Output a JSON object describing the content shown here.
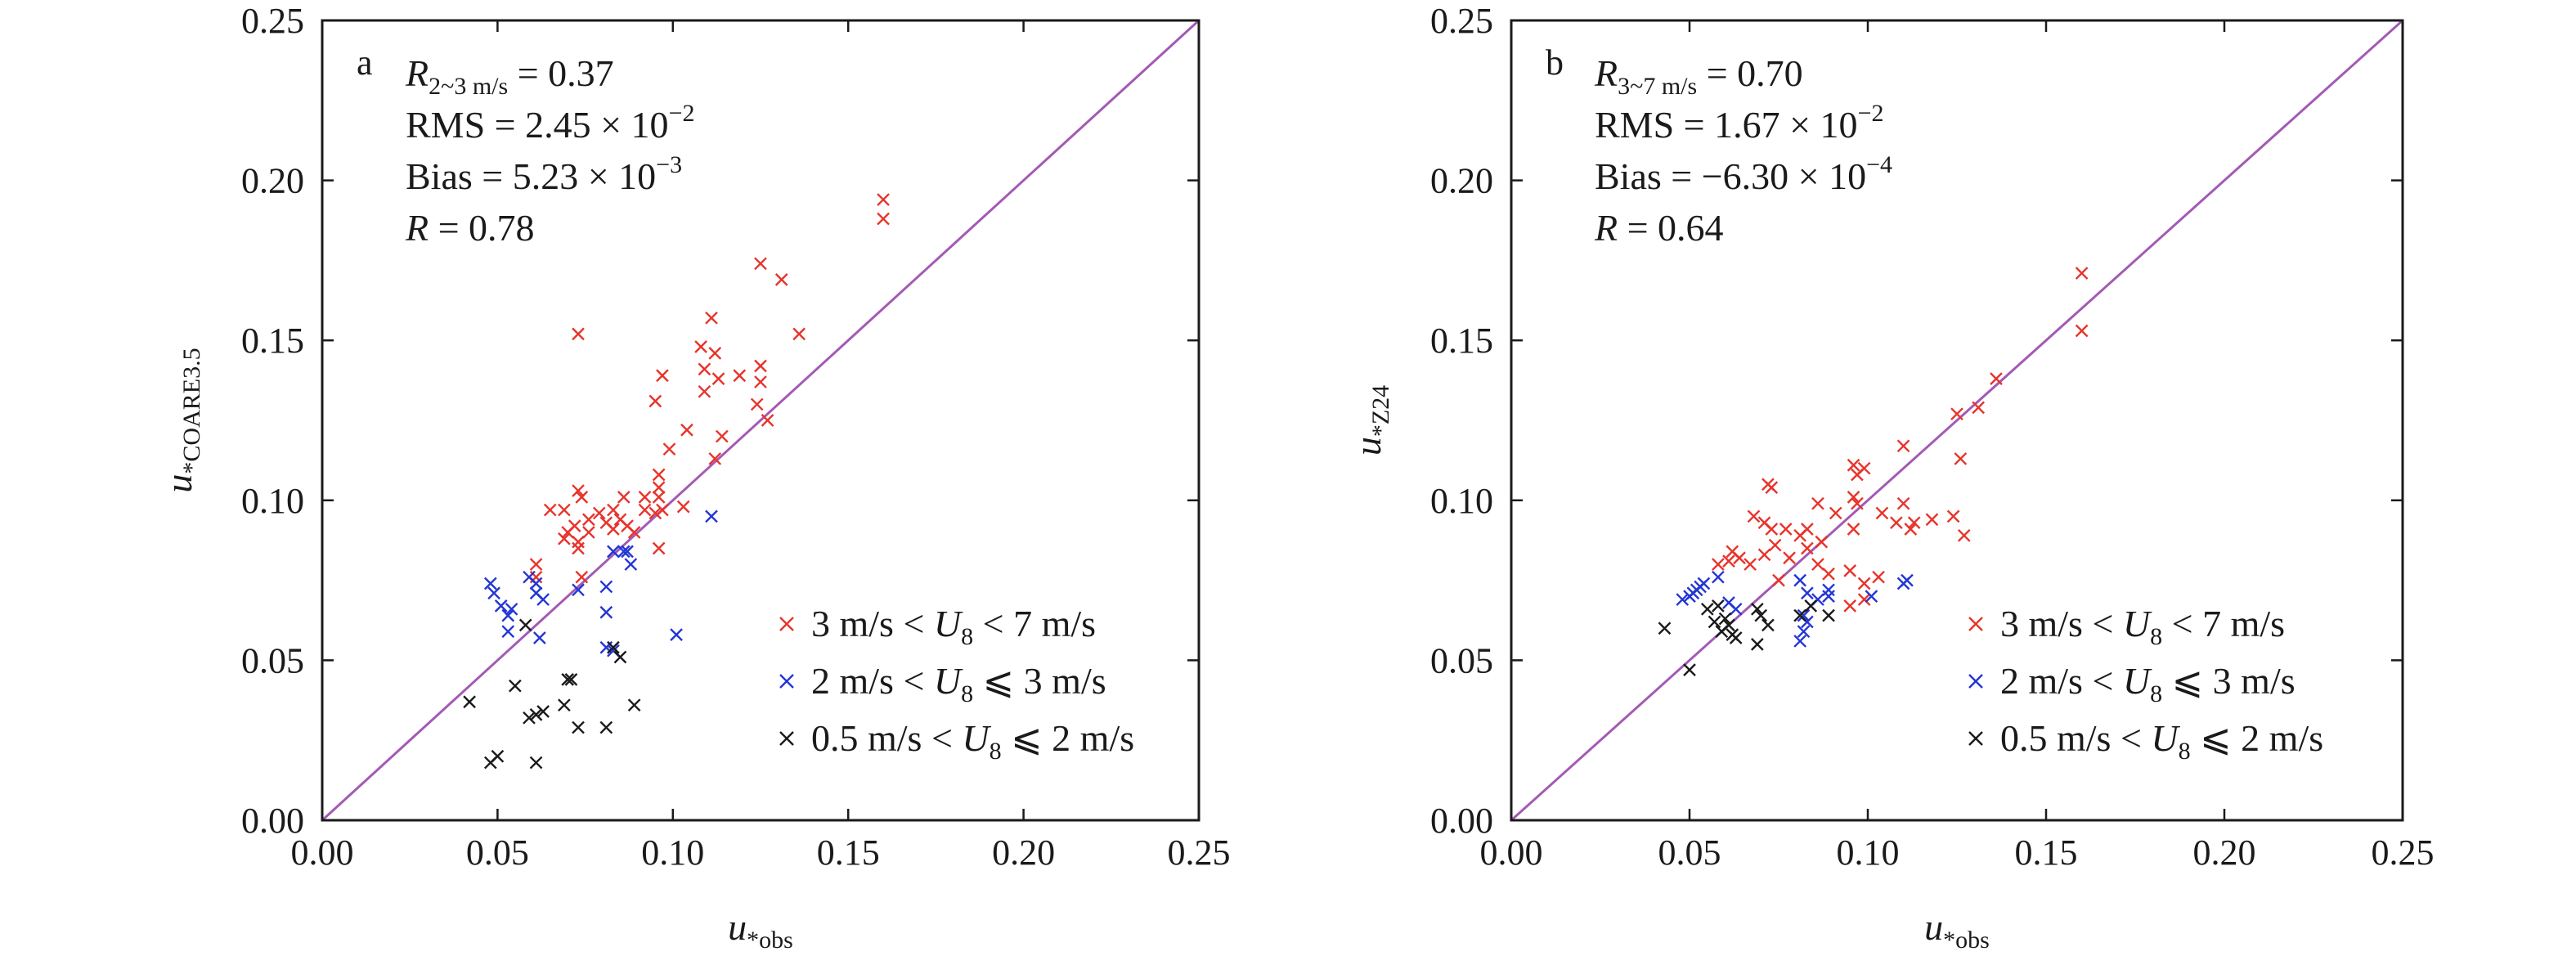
{
  "chart_data": [
    {
      "type": "scatter",
      "panel_label": "a",
      "xlabel": {
        "main": "u",
        "sub": "*obs"
      },
      "ylabel": {
        "main": "u",
        "sub": "*COARE3.5"
      },
      "xlim": [
        0,
        0.25
      ],
      "ylim": [
        0,
        0.25
      ],
      "x_ticks": [
        "0.00",
        "0.05",
        "0.10",
        "0.15",
        "0.20",
        "0.25"
      ],
      "y_ticks": [
        "0.00",
        "0.05",
        "0.10",
        "0.15",
        "0.20",
        "0.25"
      ],
      "reference_line": "1:1",
      "stats": [
        {
          "pre": "R",
          "sub": "2~3 m/s",
          "post": " = 0.37",
          "sup": ""
        },
        {
          "pre": "RMS = 2.45 × 10",
          "sub": "",
          "post": "",
          "sup": "−2"
        },
        {
          "pre": "Bias = 5.23 × 10",
          "sub": "",
          "post": "",
          "sup": "−3"
        },
        {
          "pre": "R",
          "sub": "",
          "post": " = 0.78",
          "sup": ""
        }
      ],
      "legend_position": "bottom-right",
      "series": [
        {
          "name": "3 m/s < U8 < 7 m/s",
          "legend": {
            "a": "3 m/s < ",
            "u": "U",
            "s": "8",
            "b": " < 7 m/s"
          },
          "color": "#e8332a",
          "points": [
            [
              0.16,
              0.194
            ],
            [
              0.16,
              0.188
            ],
            [
              0.125,
              0.174
            ],
            [
              0.131,
              0.169
            ],
            [
              0.111,
              0.157
            ],
            [
              0.073,
              0.152
            ],
            [
              0.112,
              0.146
            ],
            [
              0.136,
              0.152
            ],
            [
              0.108,
              0.148
            ],
            [
              0.097,
              0.139
            ],
            [
              0.109,
              0.141
            ],
            [
              0.125,
              0.142
            ],
            [
              0.119,
              0.139
            ],
            [
              0.113,
              0.138
            ],
            [
              0.125,
              0.137
            ],
            [
              0.109,
              0.134
            ],
            [
              0.095,
              0.131
            ],
            [
              0.124,
              0.13
            ],
            [
              0.127,
              0.125
            ],
            [
              0.112,
              0.113
            ],
            [
              0.114,
              0.12
            ],
            [
              0.104,
              0.122
            ],
            [
              0.099,
              0.116
            ],
            [
              0.096,
              0.108
            ],
            [
              0.096,
              0.104
            ],
            [
              0.096,
              0.101
            ],
            [
              0.073,
              0.103
            ],
            [
              0.074,
              0.101
            ],
            [
              0.065,
              0.097
            ],
            [
              0.069,
              0.097
            ],
            [
              0.079,
              0.096
            ],
            [
              0.083,
              0.097
            ],
            [
              0.086,
              0.101
            ],
            [
              0.092,
              0.101
            ],
            [
              0.081,
              0.093
            ],
            [
              0.085,
              0.094
            ],
            [
              0.072,
              0.092
            ],
            [
              0.076,
              0.094
            ],
            [
              0.092,
              0.097
            ],
            [
              0.097,
              0.097
            ],
            [
              0.083,
              0.091
            ],
            [
              0.087,
              0.092
            ],
            [
              0.07,
              0.09
            ],
            [
              0.076,
              0.09
            ],
            [
              0.073,
              0.087
            ],
            [
              0.089,
              0.09
            ],
            [
              0.095,
              0.096
            ],
            [
              0.073,
              0.085
            ],
            [
              0.069,
              0.088
            ],
            [
              0.096,
              0.085
            ],
            [
              0.061,
              0.08
            ],
            [
              0.103,
              0.098
            ],
            [
              0.061,
              0.076
            ],
            [
              0.074,
              0.076
            ]
          ]
        },
        {
          "name": "2 m/s < U8 ⩽ 3 m/s",
          "legend": {
            "a": "2 m/s < ",
            "u": "U",
            "s": "8",
            "b": " ⩽ 3 m/s"
          },
          "color": "#2236d6",
          "points": [
            [
              0.048,
              0.074
            ],
            [
              0.049,
              0.071
            ],
            [
              0.051,
              0.067
            ],
            [
              0.053,
              0.064
            ],
            [
              0.054,
              0.066
            ],
            [
              0.059,
              0.076
            ],
            [
              0.061,
              0.074
            ],
            [
              0.061,
              0.071
            ],
            [
              0.063,
              0.069
            ],
            [
              0.053,
              0.059
            ],
            [
              0.062,
              0.057
            ],
            [
              0.073,
              0.072
            ],
            [
              0.081,
              0.073
            ],
            [
              0.083,
              0.084
            ],
            [
              0.086,
              0.084
            ],
            [
              0.087,
              0.084
            ],
            [
              0.088,
              0.08
            ],
            [
              0.081,
              0.065
            ],
            [
              0.101,
              0.058
            ],
            [
              0.111,
              0.095
            ],
            [
              0.081,
              0.054
            ],
            [
              0.083,
              0.053
            ]
          ]
        },
        {
          "name": "0.5 m/s < U8 ⩽ 2 m/s",
          "legend": {
            "a": "0.5 m/s < ",
            "u": "U",
            "s": "8",
            "b": " ⩽ 2 m/s"
          },
          "color": "#1a1a1a",
          "points": [
            [
              0.042,
              0.037
            ],
            [
              0.048,
              0.018
            ],
            [
              0.05,
              0.02
            ],
            [
              0.055,
              0.042
            ],
            [
              0.058,
              0.061
            ],
            [
              0.059,
              0.032
            ],
            [
              0.061,
              0.033
            ],
            [
              0.063,
              0.034
            ],
            [
              0.061,
              0.018
            ],
            [
              0.069,
              0.036
            ],
            [
              0.07,
              0.044
            ],
            [
              0.071,
              0.044
            ],
            [
              0.073,
              0.029
            ],
            [
              0.081,
              0.029
            ],
            [
              0.083,
              0.054
            ],
            [
              0.085,
              0.051
            ],
            [
              0.089,
              0.036
            ]
          ]
        }
      ]
    },
    {
      "type": "scatter",
      "panel_label": "b",
      "xlabel": {
        "main": "u",
        "sub": "*obs"
      },
      "ylabel": {
        "main": "u",
        "sub": "*Z24"
      },
      "xlim": [
        0,
        0.25
      ],
      "ylim": [
        0,
        0.25
      ],
      "x_ticks": [
        "0.00",
        "0.05",
        "0.10",
        "0.15",
        "0.20",
        "0.25"
      ],
      "y_ticks": [
        "0.00",
        "0.05",
        "0.10",
        "0.15",
        "0.20",
        "0.25"
      ],
      "reference_line": "1:1",
      "stats": [
        {
          "pre": "R",
          "sub": "3~7 m/s",
          "post": " = 0.70",
          "sup": ""
        },
        {
          "pre": "RMS = 1.67 × 10",
          "sub": "",
          "post": "",
          "sup": "−2"
        },
        {
          "pre": "Bias = −6.30 × 10",
          "sub": "",
          "post": "",
          "sup": "−4"
        },
        {
          "pre": "R",
          "sub": "",
          "post": " = 0.64",
          "sup": ""
        }
      ],
      "legend_position": "bottom-right",
      "series": [
        {
          "name": "3 m/s < U8 < 7 m/s",
          "legend": {
            "a": "3 m/s < ",
            "u": "U",
            "s": "8",
            "b": " < 7 m/s"
          },
          "color": "#e8332a",
          "points": [
            [
              0.16,
              0.171
            ],
            [
              0.16,
              0.153
            ],
            [
              0.136,
              0.138
            ],
            [
              0.131,
              0.129
            ],
            [
              0.125,
              0.127
            ],
            [
              0.126,
              0.113
            ],
            [
              0.11,
              0.117
            ],
            [
              0.096,
              0.111
            ],
            [
              0.099,
              0.11
            ],
            [
              0.097,
              0.108
            ],
            [
              0.072,
              0.105
            ],
            [
              0.073,
              0.104
            ],
            [
              0.096,
              0.101
            ],
            [
              0.097,
              0.099
            ],
            [
              0.086,
              0.099
            ],
            [
              0.11,
              0.099
            ],
            [
              0.113,
              0.093
            ],
            [
              0.118,
              0.094
            ],
            [
              0.124,
              0.095
            ],
            [
              0.127,
              0.089
            ],
            [
              0.104,
              0.096
            ],
            [
              0.108,
              0.093
            ],
            [
              0.112,
              0.091
            ],
            [
              0.068,
              0.095
            ],
            [
              0.071,
              0.093
            ],
            [
              0.073,
              0.091
            ],
            [
              0.077,
              0.091
            ],
            [
              0.081,
              0.089
            ],
            [
              0.083,
              0.091
            ],
            [
              0.087,
              0.087
            ],
            [
              0.091,
              0.096
            ],
            [
              0.096,
              0.091
            ],
            [
              0.062,
              0.084
            ],
            [
              0.064,
              0.082
            ],
            [
              0.067,
              0.08
            ],
            [
              0.071,
              0.083
            ],
            [
              0.074,
              0.086
            ],
            [
              0.078,
              0.082
            ],
            [
              0.083,
              0.085
            ],
            [
              0.086,
              0.08
            ],
            [
              0.089,
              0.077
            ],
            [
              0.095,
              0.078
            ],
            [
              0.099,
              0.074
            ],
            [
              0.103,
              0.076
            ],
            [
              0.095,
              0.067
            ],
            [
              0.099,
              0.069
            ],
            [
              0.075,
              0.075
            ],
            [
              0.061,
              0.081
            ],
            [
              0.058,
              0.08
            ]
          ]
        },
        {
          "name": "2 m/s < U8 ⩽ 3 m/s",
          "legend": {
            "a": "2 m/s < ",
            "u": "U",
            "s": "8",
            "b": " ⩽ 3 m/s"
          },
          "color": "#2236d6",
          "points": [
            [
              0.048,
              0.069
            ],
            [
              0.05,
              0.07
            ],
            [
              0.051,
              0.071
            ],
            [
              0.052,
              0.072
            ],
            [
              0.053,
              0.073
            ],
            [
              0.054,
              0.074
            ],
            [
              0.058,
              0.076
            ],
            [
              0.061,
              0.068
            ],
            [
              0.063,
              0.066
            ],
            [
              0.081,
              0.075
            ],
            [
              0.083,
              0.071
            ],
            [
              0.086,
              0.069
            ],
            [
              0.082,
              0.064
            ],
            [
              0.083,
              0.062
            ],
            [
              0.082,
              0.059
            ],
            [
              0.081,
              0.056
            ],
            [
              0.089,
              0.072
            ],
            [
              0.089,
              0.07
            ],
            [
              0.101,
              0.07
            ],
            [
              0.111,
              0.075
            ],
            [
              0.11,
              0.074
            ]
          ]
        },
        {
          "name": "0.5 m/s < U8 ⩽ 2 m/s",
          "legend": {
            "a": "0.5 m/s < ",
            "u": "U",
            "s": "8",
            "b": " ⩽ 2 m/s"
          },
          "color": "#1a1a1a",
          "points": [
            [
              0.043,
              0.06
            ],
            [
              0.05,
              0.047
            ],
            [
              0.055,
              0.066
            ],
            [
              0.057,
              0.062
            ],
            [
              0.058,
              0.067
            ],
            [
              0.059,
              0.059
            ],
            [
              0.06,
              0.063
            ],
            [
              0.061,
              0.061
            ],
            [
              0.062,
              0.058
            ],
            [
              0.063,
              0.057
            ],
            [
              0.069,
              0.066
            ],
            [
              0.07,
              0.064
            ],
            [
              0.072,
              0.061
            ],
            [
              0.069,
              0.055
            ],
            [
              0.081,
              0.064
            ],
            [
              0.084,
              0.067
            ],
            [
              0.089,
              0.064
            ]
          ]
        }
      ]
    }
  ]
}
